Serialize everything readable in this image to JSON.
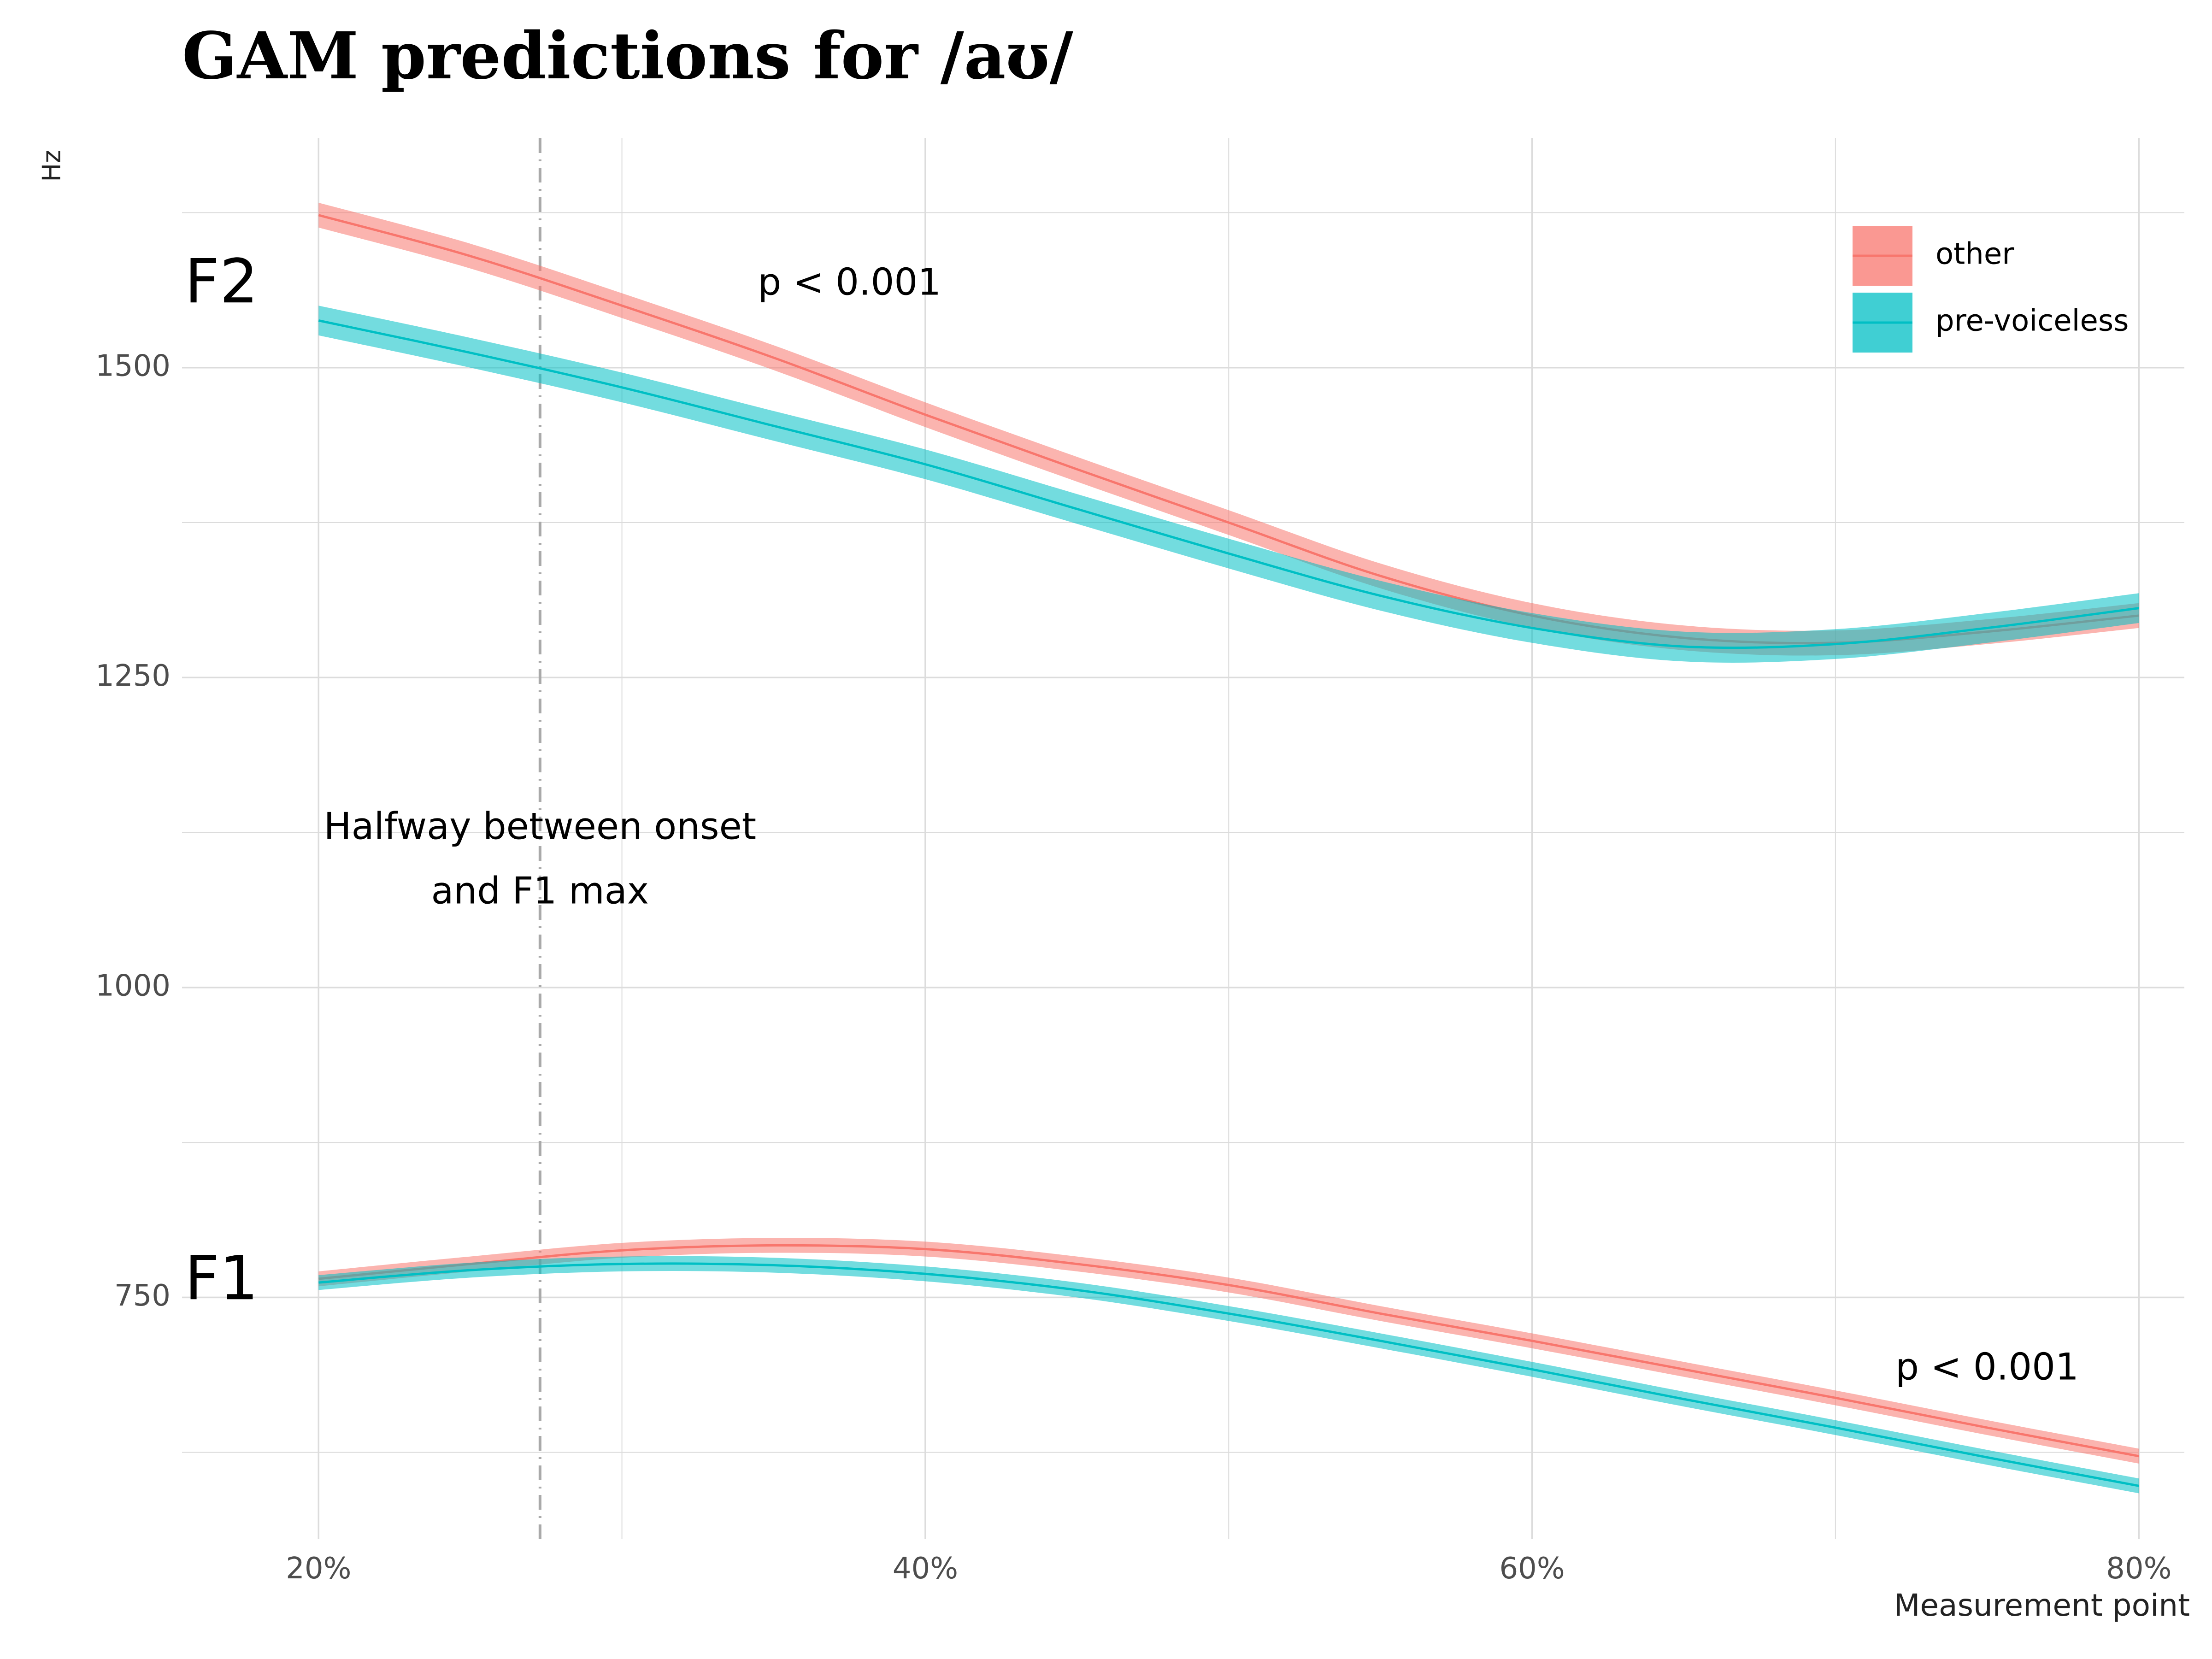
{
  "colors": {
    "other": "#F8766D",
    "pre_voiceless": "#00BFC4",
    "grid": "#DCDCDC",
    "reference_line": "#A9A9A9"
  },
  "chart_data": {
    "type": "line",
    "title": "GAM predictions for /aʊ/",
    "xlabel": "Measurement point",
    "ylabel": "Hz",
    "xlim": [
      15.5,
      81.5
    ],
    "ylim": [
      555,
      1685
    ],
    "x_ticks": [
      20,
      40,
      60,
      80
    ],
    "x_tick_labels": [
      "20%",
      "40%",
      "60%",
      "80%"
    ],
    "y_ticks": [
      750,
      1000,
      1250,
      1500
    ],
    "y_tick_labels": [
      "750",
      "1000",
      "1250",
      "1500"
    ],
    "grid": true,
    "legend": {
      "position": "top-right",
      "entries": [
        "other",
        "pre-voiceless"
      ]
    },
    "x": [
      20,
      25,
      30,
      35,
      40,
      45,
      50,
      55,
      60,
      65,
      70,
      75,
      80
    ],
    "series": [
      {
        "name": "other",
        "formant": "F2",
        "values": [
          1623,
          1590,
          1550,
          1508,
          1462,
          1418,
          1375,
          1332,
          1300,
          1282,
          1278,
          1287,
          1300
        ],
        "ci": 10
      },
      {
        "name": "pre-voiceless",
        "formant": "F2",
        "values": [
          1538,
          1512,
          1484,
          1453,
          1422,
          1386,
          1350,
          1316,
          1290,
          1275,
          1277,
          1290,
          1306
        ],
        "ci": 12
      },
      {
        "name": "other",
        "formant": "F1",
        "values": [
          765,
          777,
          788,
          792,
          789,
          777,
          760,
          737,
          715,
          692,
          669,
          645,
          622
        ],
        "ci": 6
      },
      {
        "name": "pre-voiceless",
        "formant": "F1",
        "values": [
          762,
          772,
          777,
          776,
          769,
          756,
          737,
          715,
          692,
          668,
          645,
          621,
          598
        ],
        "ci": 6
      }
    ],
    "reference_line": {
      "x": 27.3,
      "style": "dot-dash"
    },
    "annotations": [
      {
        "text": "F2",
        "x": 16.8,
        "y": 1566
      },
      {
        "text": "F1",
        "x": 16.8,
        "y": 762
      },
      {
        "text": "p < 0.001",
        "x": 37.5,
        "y": 1567
      },
      {
        "text": "p < 0.001",
        "x": 75,
        "y": 692
      },
      {
        "text": "Halfway between onset",
        "x": 27.3,
        "y": 1128
      },
      {
        "text": "and F1 max",
        "x": 27.3,
        "y": 1076
      }
    ]
  }
}
